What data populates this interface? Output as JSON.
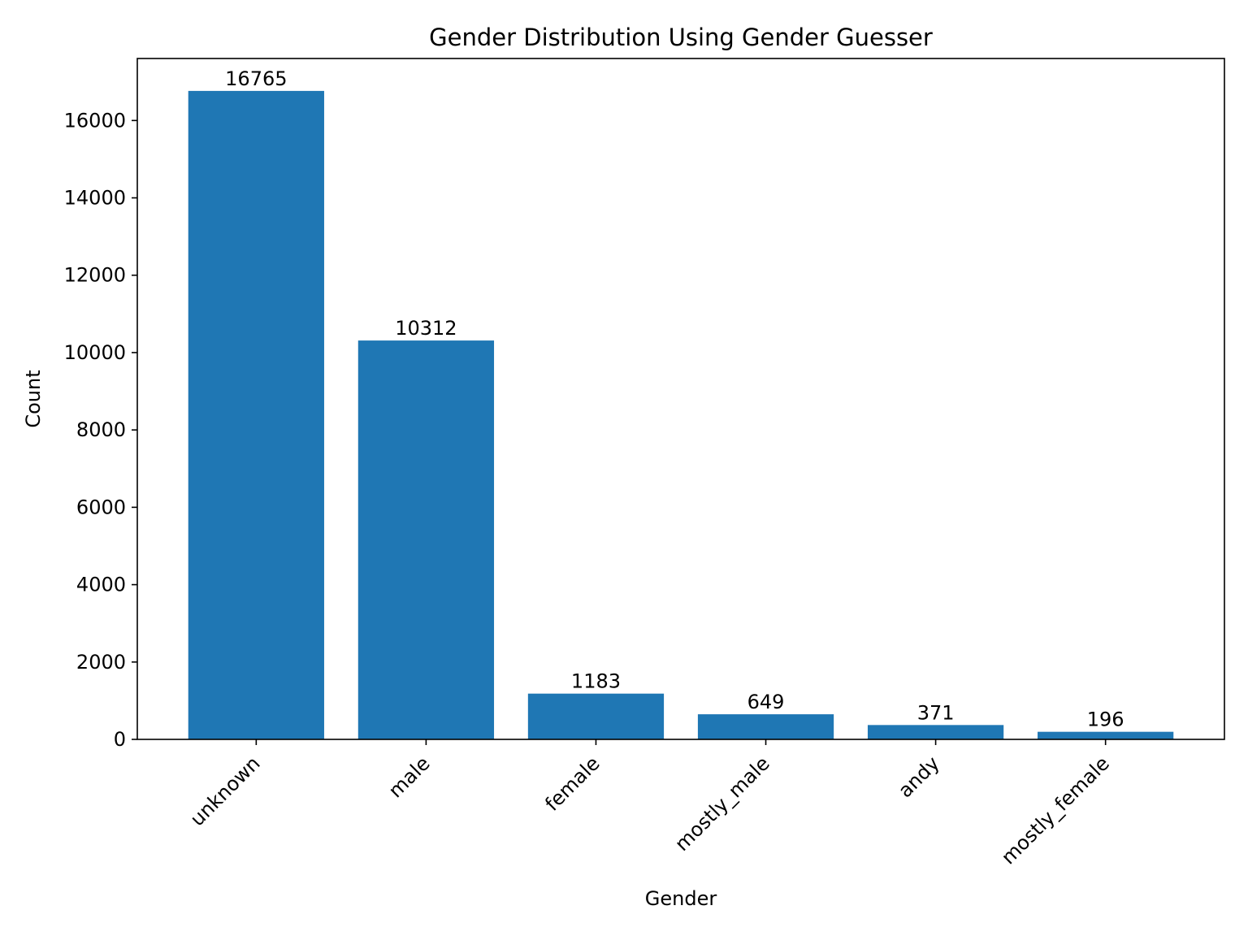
{
  "colors": {
    "bar": "#1f77b4",
    "axis": "#000000",
    "background": "#ffffff"
  },
  "chart_data": {
    "type": "bar",
    "title": "Gender Distribution Using Gender Guesser",
    "xlabel": "Gender",
    "ylabel": "Count",
    "categories": [
      "unknown",
      "male",
      "female",
      "mostly_male",
      "andy",
      "mostly_female"
    ],
    "values": [
      16765,
      10312,
      1183,
      649,
      371,
      196
    ],
    "ylim": [
      0,
      17603
    ],
    "yticks": [
      0,
      2000,
      4000,
      6000,
      8000,
      10000,
      12000,
      14000,
      16000
    ],
    "xtick_rotation_deg": 45,
    "grid": false,
    "legend": "none"
  }
}
